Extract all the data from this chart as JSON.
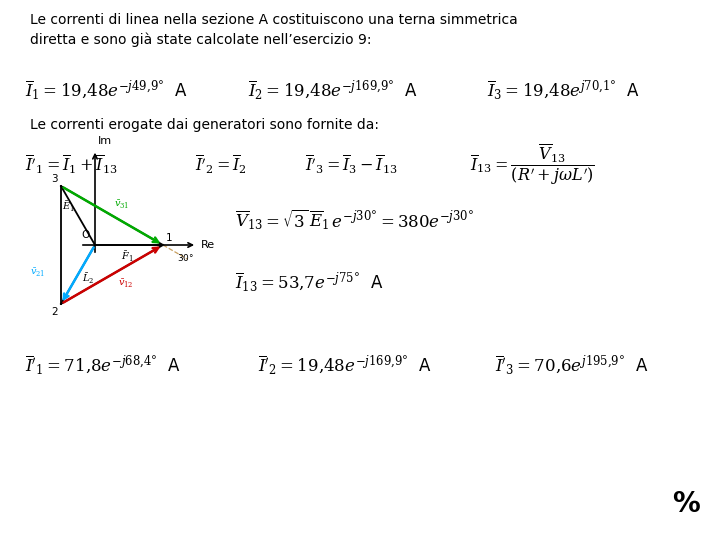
{
  "bg_color": "#ffffff",
  "text_color": "#000000",
  "title_text": "Le correnti di linea nella sezione A costituiscono una terna simmetrica\ndiretta e sono già state calcolate nell’esercizio 9:",
  "line2_text": "Le correnti erogate dai generatori sono fornite da:",
  "percent": "%",
  "colors": {
    "black": "#000000",
    "cyan": "#00aaff",
    "green": "#00aa00",
    "red": "#cc0000",
    "dashed_tan": "#c8a060"
  },
  "ox": 95,
  "oy": 295,
  "scale": 68
}
